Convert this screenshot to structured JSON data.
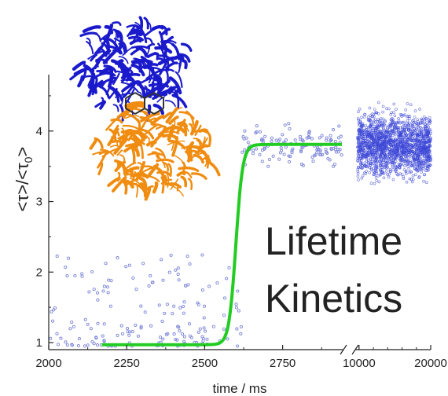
{
  "chart_data": {
    "type": "scatter",
    "title": "",
    "xlabel": "time / ms",
    "ylabel": "<τ>/<τ0>",
    "ylabel_main": "<τ>/<τ",
    "ylabel_sub": "0",
    "ylabel_end": ">",
    "annotation_line1": "Lifetime",
    "annotation_line2": "Kinetics",
    "x_axis_break": true,
    "x_segment1_range": [
      2000,
      2940
    ],
    "x_segment2_range": [
      9800,
      20000
    ],
    "ylim": [
      0.9,
      4.8
    ],
    "x_ticks_segment1": [
      "2000",
      "2250",
      "2500",
      "2750"
    ],
    "x_tick_values_segment1": [
      2000,
      2250,
      2500,
      2750
    ],
    "x_ticks_segment2": [
      "10000",
      "20000"
    ],
    "x_tick_values_segment2": [
      10000,
      20000
    ],
    "y_ticks": [
      "1",
      "2",
      "3",
      "4"
    ],
    "y_tick_values": [
      1,
      2,
      3,
      4
    ],
    "series": [
      {
        "kind": "scatter",
        "color": "#7f88d8",
        "low_state": {
          "x_range": [
            2000,
            2620
          ],
          "mean": 1.1,
          "spread": 0.55
        },
        "high_state": {
          "x_range": [
            2620,
            2940
          ],
          "mean": 3.8,
          "spread": 0.45
        },
        "segment2_high_state": {
          "x_range": [
            9800,
            20000
          ],
          "mean": 3.8,
          "spread": 0.55
        }
      },
      {
        "kind": "fit",
        "color": "#22cc22",
        "x_start": 2170,
        "x_end": 2940,
        "baseline": 0.97,
        "plateau": 3.81,
        "midpoint": 2600,
        "width": 11
      }
    ],
    "structure_colors": {
      "upper": "#1a1acc",
      "lower": "#f08c10",
      "ligand": "#333333"
    }
  }
}
